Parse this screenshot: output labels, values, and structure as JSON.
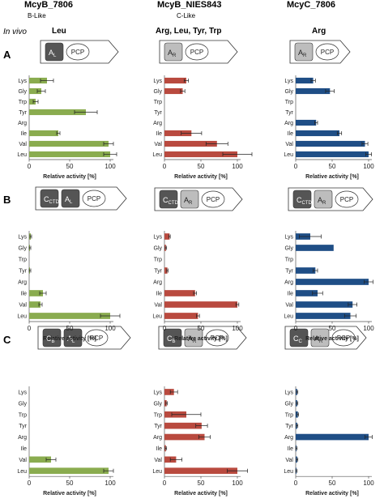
{
  "columns": [
    {
      "title": "McyB_7806",
      "subtitle": "B-Like",
      "specificity": "Leu"
    },
    {
      "title": "McyB_NIES843",
      "subtitle": "C-Like",
      "specificity": "Arg, Leu, Tyr, Trp"
    },
    {
      "title": "McyC_7806",
      "subtitle": "",
      "specificity": "Arg"
    }
  ],
  "in_vivo_label": "In vivo",
  "row_labels": [
    "A",
    "B",
    "C"
  ],
  "domain_labels": {
    "A": [
      [
        "A",
        "L",
        "PCP"
      ],
      [
        "A",
        "R",
        "PCP"
      ],
      [
        "A",
        "R",
        "PCP"
      ]
    ],
    "B": [
      [
        "C",
        "CTD",
        "A",
        "L",
        "PCP"
      ],
      [
        "C",
        "CTD",
        "A",
        "R",
        "PCP"
      ],
      [
        "C",
        "CTD",
        "A",
        "R",
        "PCP"
      ]
    ],
    "C": [
      [
        "C",
        "B",
        "A",
        "L",
        "PCP"
      ],
      [
        "C",
        "B",
        "A",
        "R",
        "PCP"
      ],
      [
        "C",
        "C",
        "A",
        "R",
        "PCP"
      ]
    ]
  },
  "colors": {
    "green": "#8aac4f",
    "red": "#b94a3f",
    "blue": "#1f4e86",
    "dark_domain": "#555555",
    "light_domain": "#bdbdbd"
  },
  "chart_data": [
    {
      "type": "bar",
      "panel": "A-McyB_7806",
      "orientation": "horizontal",
      "categories": [
        "Lys",
        "Gly",
        "Trp",
        "Tyr",
        "Arg",
        "Ile",
        "Val",
        "Leu"
      ],
      "values": [
        22,
        15,
        8,
        70,
        0,
        36,
        98,
        100
      ],
      "errors": [
        8,
        5,
        3,
        14,
        0,
        2,
        6,
        8
      ],
      "xlim": [
        0,
        100
      ],
      "xticks": [
        0,
        50,
        100
      ],
      "xlabel": "Relative activity [%]",
      "color": "green"
    },
    {
      "type": "bar",
      "panel": "A-McyB_NIES843",
      "orientation": "horizontal",
      "categories": [
        "Lys",
        "Gly",
        "Trp",
        "Tyr",
        "Arg",
        "Ile",
        "Val",
        "Leu"
      ],
      "values": [
        30,
        25,
        0,
        0,
        0,
        37,
        72,
        100
      ],
      "errors": [
        3,
        3,
        0,
        0,
        0,
        14,
        15,
        20
      ],
      "xlim": [
        0,
        100
      ],
      "xticks": [
        0,
        50,
        100
      ],
      "xlabel": "Relative activity [%]",
      "color": "red"
    },
    {
      "type": "bar",
      "panel": "A-McyC_7806",
      "orientation": "horizontal",
      "categories": [
        "Lys",
        "Gly",
        "Trp",
        "Tyr",
        "Arg",
        "Ile",
        "Val",
        "Leu"
      ],
      "values": [
        24,
        47,
        0,
        0,
        28,
        60,
        95,
        100
      ],
      "errors": [
        3,
        6,
        0,
        0,
        2,
        3,
        4,
        4
      ],
      "xlim": [
        0,
        100
      ],
      "xticks": [
        0,
        50,
        100
      ],
      "xlabel": "Relative activity [%]",
      "color": "blue"
    },
    {
      "type": "bar",
      "panel": "B-McyB_7806",
      "orientation": "horizontal",
      "categories": [
        "Lys",
        "Gly",
        "Trp",
        "Tyr",
        "Arg",
        "Ile",
        "Val",
        "Leu"
      ],
      "values": [
        2,
        1,
        0,
        1,
        0,
        17,
        14,
        100
      ],
      "errors": [
        1,
        1,
        0,
        1,
        0,
        4,
        2,
        12
      ],
      "xlim": [
        0,
        100
      ],
      "xticks": [
        0,
        50,
        100
      ],
      "xlabel": "Relative activity [%]",
      "color": "green"
    },
    {
      "type": "bar",
      "panel": "B-McyB_NIES843",
      "orientation": "horizontal",
      "categories": [
        "Lys",
        "Gly",
        "Trp",
        "Tyr",
        "Arg",
        "Ile",
        "Val",
        "Leu"
      ],
      "values": [
        7,
        2,
        0,
        4,
        0,
        42,
        100,
        46
      ],
      "errors": [
        1,
        1,
        0,
        1,
        0,
        2,
        2,
        2
      ],
      "xlim": [
        0,
        100
      ],
      "xticks": [
        0,
        50,
        100
      ],
      "xlabel": "Relative activity [%]",
      "color": "red"
    },
    {
      "type": "bar",
      "panel": "B-McyC_7806",
      "orientation": "horizontal",
      "categories": [
        "Lys",
        "Gly",
        "Trp",
        "Tyr",
        "Arg",
        "Ile",
        "Val",
        "Leu"
      ],
      "values": [
        20,
        52,
        0,
        27,
        100,
        30,
        78,
        75
      ],
      "errors": [
        15,
        0,
        0,
        3,
        6,
        7,
        6,
        8
      ],
      "xlim": [
        0,
        100
      ],
      "xticks": [
        0,
        50,
        100
      ],
      "xlabel": "Relative activity [%]",
      "color": "blue"
    },
    {
      "type": "bar",
      "panel": "C-McyB_7806",
      "orientation": "horizontal",
      "categories": [
        "Lys",
        "Gly",
        "Trp",
        "Tyr",
        "Arg",
        "Ile",
        "Val",
        "Leu"
      ],
      "values": [
        0,
        0,
        0,
        0,
        0,
        0,
        27,
        98
      ],
      "errors": [
        0,
        0,
        0,
        0,
        0,
        0,
        6,
        6
      ],
      "xlim": [
        0,
        100
      ],
      "xticks": [
        0,
        50,
        100
      ],
      "xlabel": "Relative activity [%]",
      "color": "green"
    },
    {
      "type": "bar",
      "panel": "C-McyB_NIES843",
      "orientation": "horizontal",
      "categories": [
        "Lys",
        "Gly",
        "Trp",
        "Tyr",
        "Arg",
        "Ile",
        "Val",
        "Leu"
      ],
      "values": [
        13,
        3,
        30,
        51,
        55,
        2,
        16,
        100
      ],
      "errors": [
        5,
        1,
        20,
        8,
        8,
        1,
        8,
        14
      ],
      "xlim": [
        0,
        100
      ],
      "xticks": [
        0,
        50,
        100
      ],
      "xlabel": "Relative activity [%]",
      "color": "red"
    },
    {
      "type": "bar",
      "panel": "C-McyC_7806",
      "orientation": "horizontal",
      "categories": [
        "Lys",
        "Gly",
        "Trp",
        "Tyr",
        "Arg",
        "Ile",
        "Val",
        "Leu"
      ],
      "values": [
        2,
        2,
        3,
        2,
        100,
        1,
        2,
        1
      ],
      "errors": [
        1,
        1,
        1,
        1,
        5,
        1,
        1,
        1
      ],
      "xlim": [
        0,
        100
      ],
      "xticks": [
        0,
        50,
        100
      ],
      "xlabel": "Relative activity [%]",
      "color": "blue"
    }
  ]
}
